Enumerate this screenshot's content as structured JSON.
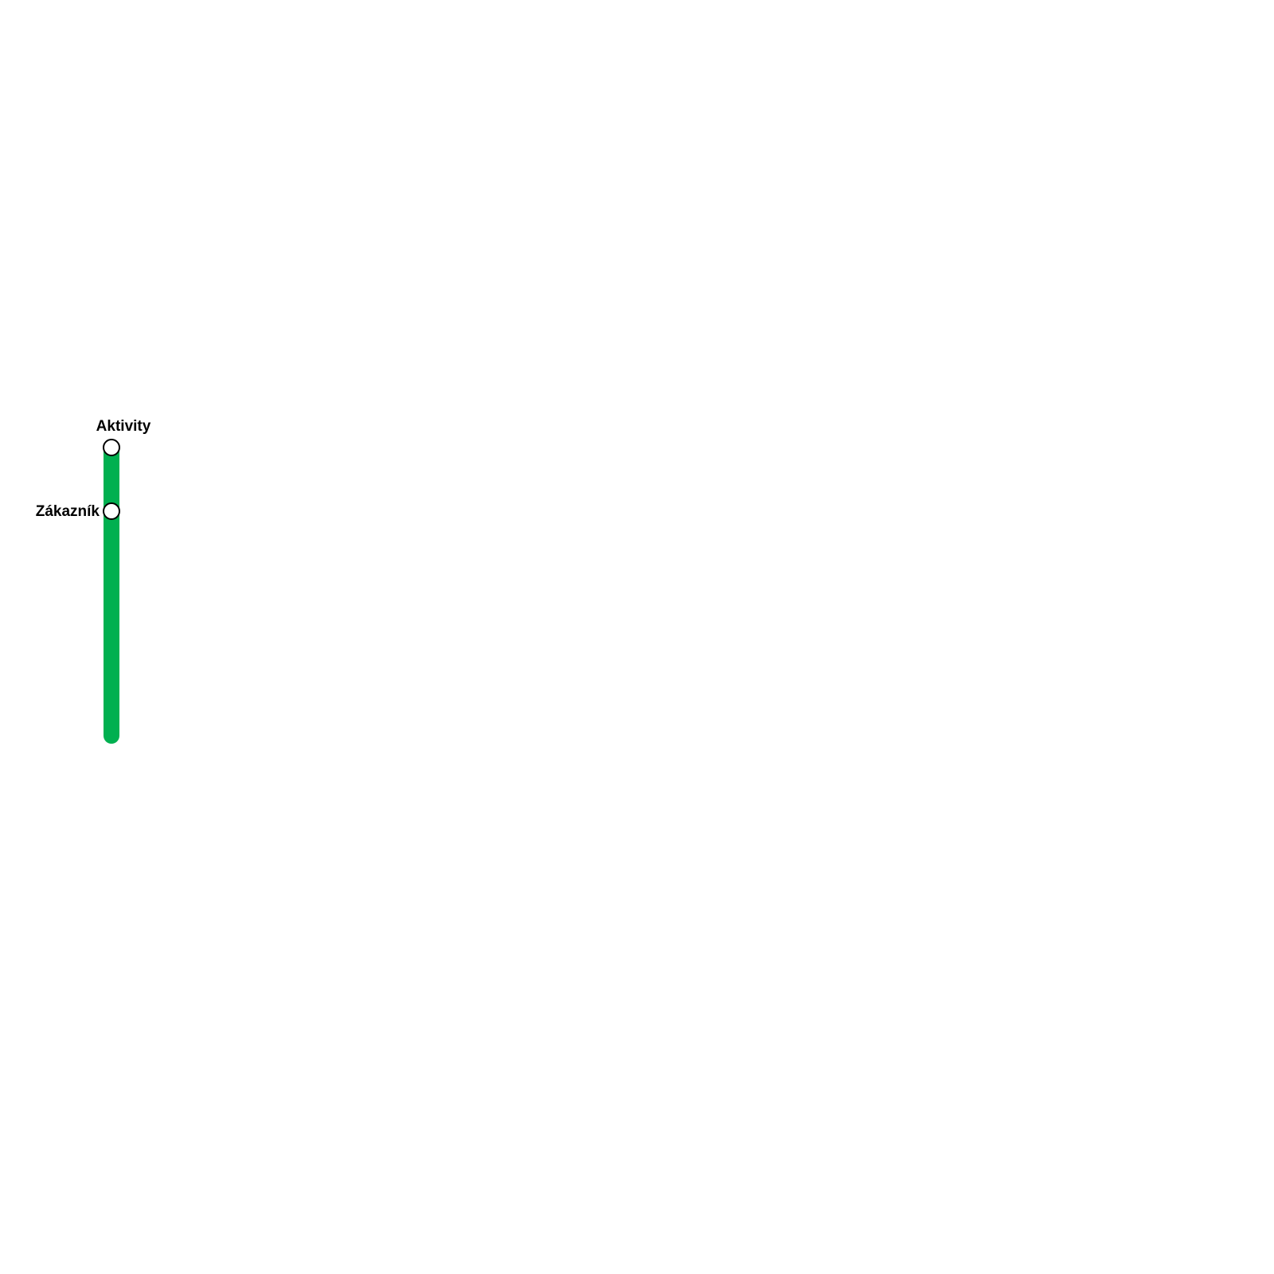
{
  "lines": [
    {
      "name": "",
      "color": "#00b050"
    }
  ],
  "stations": [
    {
      "label": "Aktivity",
      "label_position": "top"
    },
    {
      "label": "Zákazník",
      "label_position": "left"
    }
  ]
}
